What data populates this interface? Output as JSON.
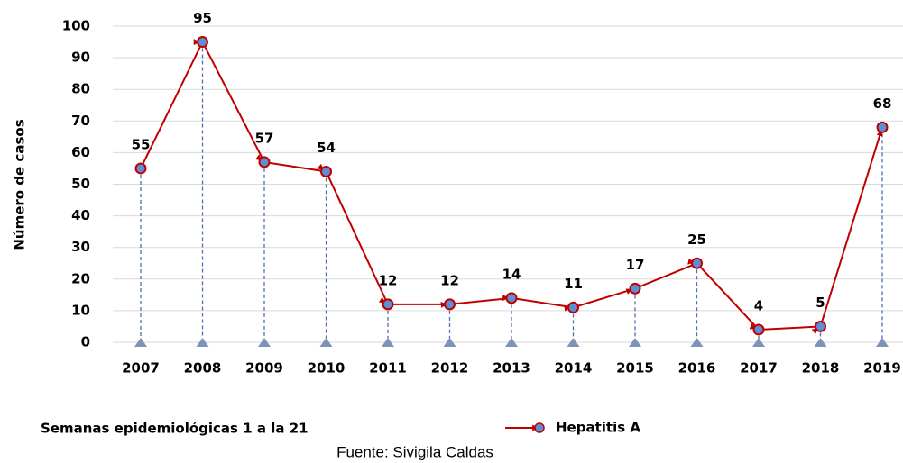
{
  "chart_data": {
    "type": "line",
    "y_label": "Número de casos",
    "categories": [
      "2007",
      "2008",
      "2009",
      "2010",
      "2011",
      "2012",
      "2013",
      "2014",
      "2015",
      "2016",
      "2017",
      "2018",
      "2019"
    ],
    "series": [
      {
        "name": "Hepatitis A",
        "color": "#c00000",
        "marker_color": "#5b8fd6",
        "values": [
          55,
          95,
          57,
          54,
          12,
          12,
          14,
          11,
          17,
          25,
          4,
          5,
          68
        ]
      }
    ],
    "ylim": [
      0,
      100
    ],
    "yticks": [
      0,
      10,
      20,
      30,
      40,
      50,
      60,
      70,
      80,
      90,
      100
    ],
    "grid": true,
    "note": "Semanas epidemiológicas 1 a la 21",
    "source": "Fuente: Sivigila Caldas"
  }
}
